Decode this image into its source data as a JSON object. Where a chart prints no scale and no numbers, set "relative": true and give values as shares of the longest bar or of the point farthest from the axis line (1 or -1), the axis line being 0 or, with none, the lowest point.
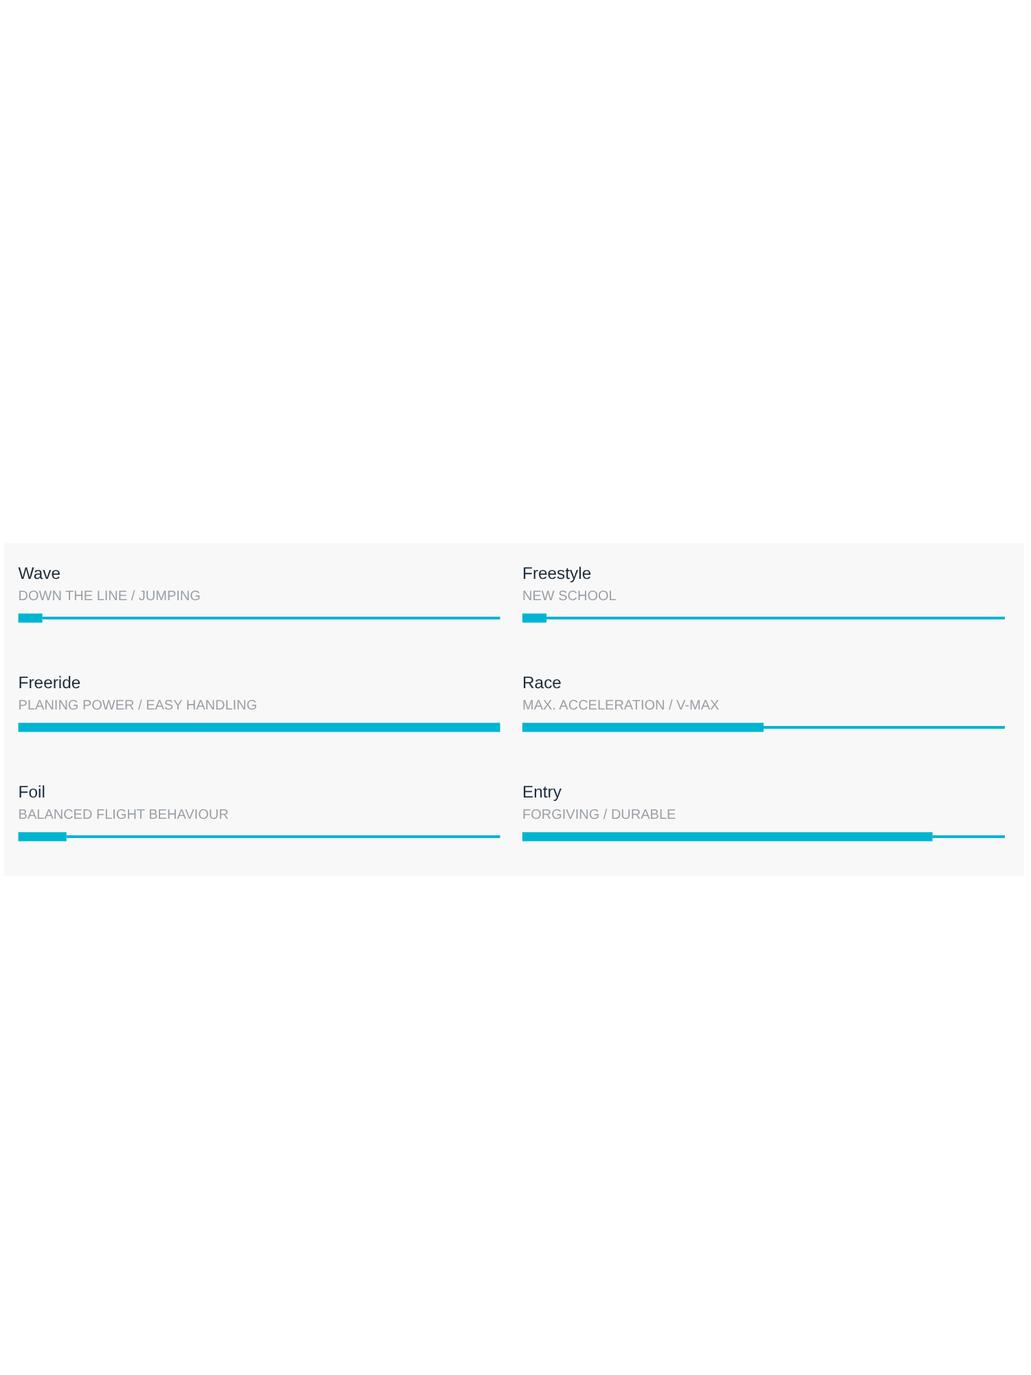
{
  "chart_data": [
    {
      "type": "bar",
      "orientation": "horizontal",
      "stacked": true,
      "relative": true,
      "categories": [
        "Wave",
        "Freeride",
        "Foil"
      ],
      "series": [
        {
          "color": "#00b5d1",
          "values": [
            0.05,
            1,
            0.1
          ]
        },
        {
          "color": "#00b5d1",
          "values": [
            0.95,
            null,
            0.9
          ]
        }
      ],
      "annotations": [
        "DOWN THE LINE / JUMPING",
        "PLANING POWER / EASY HANDLING",
        "BALANCED FLIGHT BEHAVIOUR"
      ]
    },
    {
      "type": "bar",
      "orientation": "horizontal",
      "stacked": true,
      "relative": true,
      "categories": [
        "Freestyle",
        "Race",
        "Entry"
      ],
      "series": [
        {
          "color": "#00b5d1",
          "values": [
            0.05,
            0.5,
            0.85
          ]
        },
        {
          "color": "#00b5d1",
          "values": [
            0.95,
            0.5,
            0.15
          ]
        }
      ],
      "annotations": [
        "NEW SCHOOL",
        "MAX. ACCELERATION / V-MAX",
        "FORGIVING / DURABLE"
      ]
    }
  ]
}
